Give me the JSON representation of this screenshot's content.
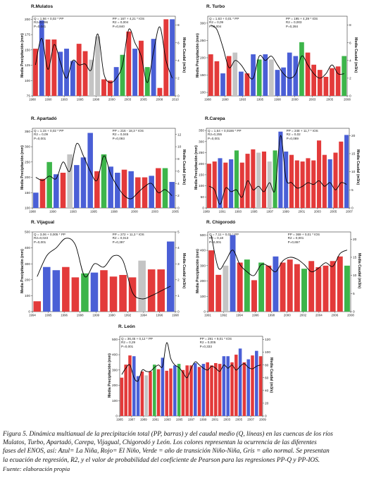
{
  "colors": {
    "nina": "#4a5fd6",
    "nino": "#e33a3a",
    "transicion": "#3db54a",
    "normal": "#c4c4c4",
    "line": "#000000"
  },
  "chart_data": [
    {
      "type": "bar",
      "title": "R.Mulatos",
      "eq": {
        "q": "Q = 1,56 + 0,02 * PP",
        "r2q": "R2=0,096",
        "pq": "P=0,041",
        "pp": "PP = 167 + 4,21 * IOS",
        "r2p": "R2 = 0,004",
        "ppv": "P=0,840"
      },
      "ylabel": "Media Precipitación (mm)",
      "y2label": "Media Caudal (m3/s)",
      "yticks": [
        "75",
        "100",
        "125",
        "150",
        "175",
        "200"
      ],
      "y2ticks": [
        "0",
        "2",
        "4",
        "6",
        "8"
      ],
      "xticks": [
        "1988",
        "1990",
        "1993",
        "1995",
        "1998",
        "2000",
        "2003",
        "2005",
        "2008",
        "2010"
      ],
      "ylim": [
        75,
        205
      ],
      "y2lim": [
        0,
        9
      ],
      "values": [
        152,
        198,
        167,
        167,
        147,
        152,
        132,
        160,
        148,
        134,
        172,
        102,
        100,
        122,
        142,
        180,
        152,
        165,
        122,
        168,
        88,
        200,
        200
      ],
      "phases": [
        "nino",
        "nina",
        "nino",
        "nino",
        "nina",
        "nina",
        "nina",
        "nino",
        "nino",
        "normal",
        "normal",
        "nino",
        "nino",
        "nina",
        "transicion",
        "nino",
        "nina",
        "nino",
        "transicion",
        "nina",
        "nino",
        "nino",
        "nina"
      ],
      "q": [
        3.5,
        6.5,
        3.0,
        5.8,
        3.8,
        2.0,
        4.0,
        3.5,
        3.6,
        3.0,
        7.0,
        2.5,
        1.5,
        2.0,
        3.5,
        7.5,
        6.0,
        4.5,
        1.5,
        5.0,
        7.8,
        4.0,
        2.0
      ]
    },
    {
      "type": "bar",
      "title": "R. Turbo",
      "eq": {
        "q": "Q = 1,63 + 0,01 * PP",
        "r2q": "R2 = 0,09",
        "pq": "P=0,004",
        "pp": "PP = 195 + 4,39 * IOS",
        "r2p": "R2 = 0,003",
        "ppv": "P=0,284"
      },
      "ylabel": "Media Precipitación (mm)",
      "y2label": "Media Caudal (m3/s)",
      "yticks": [
        "100",
        "150",
        "200",
        "250",
        "300"
      ],
      "y2ticks": [
        "0",
        "2",
        "4",
        "6",
        "8"
      ],
      "xticks": [
        "1988",
        "1990",
        "1993",
        "1995",
        "1998",
        "2000",
        "2003",
        "2005",
        "2008"
      ],
      "ylim": [
        90,
        320
      ],
      "y2lim": [
        0,
        9
      ],
      "values": [
        210,
        190,
        155,
        205,
        215,
        160,
        155,
        210,
        195,
        210,
        195,
        165,
        172,
        215,
        205,
        245,
        215,
        180,
        165,
        145,
        170,
        175,
        205
      ],
      "phases": [
        "nino",
        "nino",
        "nina",
        "nino",
        "normal",
        "nina",
        "nino",
        "nina",
        "transicion",
        "nina",
        "normal",
        "nina",
        "nina",
        "nina",
        "nina",
        "transicion",
        "nino",
        "nino",
        "nino",
        "nino",
        "nino",
        "nino",
        "transicion"
      ],
      "q": [
        8.0,
        7.5,
        5.5,
        3.2,
        4.0,
        3.5,
        2.5,
        2.0,
        4.5,
        4.0,
        4.5,
        3.5,
        2.5,
        2.0,
        2.5,
        4.5,
        3.5,
        2.5,
        2.0,
        2.5,
        3.5,
        2.5,
        2.5
      ]
    },
    {
      "type": "bar",
      "title": "R. Apartadó",
      "eq": {
        "q": "Q = 1,15 + 0,02 * PP",
        "r2q": "R2 = 0,09",
        "pq": "P=0,001",
        "pp": "PP = 216 - 18,3 * IOS",
        "r2p": "R2 = 0,045",
        "ppv": "P=0,093"
      },
      "ylabel": "Media Precipitación (mm)",
      "y2label": "Media Caudal (m3/s)",
      "yticks": [
        "100",
        "150",
        "200",
        "250",
        "300",
        "350"
      ],
      "y2ticks": [
        "0",
        "2",
        "4",
        "6",
        "8",
        "10",
        "12"
      ],
      "xticks": [
        "1988",
        "1990",
        "1993",
        "1995",
        "1998",
        "2000",
        "2003",
        "2005"
      ],
      "ylim": [
        100,
        360
      ],
      "y2lim": [
        0,
        13
      ],
      "values": [
        150,
        195,
        250,
        210,
        215,
        275,
        240,
        265,
        345,
        220,
        275,
        235,
        215,
        225,
        220,
        200,
        200,
        205,
        230,
        230,
        185
      ],
      "phases": [
        "nina",
        "nino",
        "transicion",
        "nina",
        "nino",
        "normal",
        "nina",
        "nina",
        "nina",
        "nino",
        "transicion",
        "nina",
        "nina",
        "nino",
        "nina",
        "nino",
        "nino",
        "nina",
        "nino",
        "transicion",
        "nina"
      ],
      "q": [
        5.0,
        4.5,
        5.2,
        4.8,
        7.5,
        6.0,
        10.5,
        8.5,
        6.0,
        4.5,
        8.5,
        5.5,
        3.5,
        2.0,
        1.5,
        2.5,
        3.5,
        4.0,
        2.5,
        3.0,
        2.0
      ]
    },
    {
      "type": "bar",
      "title": "R.Carepa",
      "eq": {
        "q": "Q = 1,64 + 0,0186 * PP",
        "r2q": "R2=0,255",
        "pq": "P=0,001",
        "pp": "PP = 248 + 11,7 * IOS",
        "r2p": "R2 = 0,02",
        "ppv": "P=0,089"
      },
      "ylabel": "Media Precipitación (mm)",
      "y2label": "Media Caudal (m3/s)",
      "yticks": [
        "0",
        "50",
        "100",
        "150",
        "200",
        "250",
        "300",
        "350"
      ],
      "y2ticks": [
        "0",
        "5",
        "10",
        "15",
        "20"
      ],
      "xticks": [
        "1989",
        "1991",
        "1993",
        "1995",
        "1997",
        "1999",
        "2001",
        "2003",
        "2005",
        "2007"
      ],
      "ylim": [
        0,
        360
      ],
      "y2lim": [
        0,
        22
      ],
      "values": [
        200,
        210,
        225,
        205,
        220,
        260,
        205,
        245,
        265,
        250,
        255,
        210,
        260,
        345,
        255,
        240,
        215,
        210,
        225,
        215,
        305,
        240,
        220,
        250,
        300,
        330
      ],
      "phases": [
        "nino",
        "nino",
        "nina",
        "nino",
        "nina",
        "transicion",
        "nino",
        "nino",
        "nino",
        "normal",
        "nino",
        "normal",
        "transicion",
        "nina",
        "nina",
        "nino",
        "nino",
        "nino",
        "nino",
        "nino",
        "nino",
        "nino",
        "nina",
        "nino",
        "nino",
        "nina"
      ],
      "q": [
        6.0,
        5.0,
        1.0,
        5.5,
        4.5,
        5.0,
        3.0,
        7.5,
        5.0,
        6.0,
        4.5,
        7.0,
        5.0,
        20.0,
        8.0,
        7.0,
        5.5,
        6.0,
        7.0,
        6.5,
        7.5,
        6.0,
        7.0,
        5.0,
        7.0,
        6.5
      ]
    },
    {
      "type": "bar",
      "title": "R. Vijagual",
      "eq": {
        "q": "Q = 3,06 + 0,005 * PP",
        "r2q": "R2=0,023",
        "pq": "P=0,001",
        "pp": "PP = 272 + 11,3 * IOS",
        "r2p": "R2 = 0,013",
        "ppv": "P=0,397"
      },
      "ylabel": "Media Precipitación (mm)",
      "y2label": "Media Caudal (m3/s)",
      "yticks": [
        "0",
        "100",
        "200",
        "300",
        "400",
        "500"
      ],
      "y2ticks": [
        "0",
        "1",
        "2",
        "3",
        "4",
        "5"
      ],
      "xticks": [
        "1994",
        "1995",
        "1996",
        "1998",
        "1999",
        "1990",
        "1992",
        "1994",
        "1996",
        "1998"
      ],
      "ylim": [
        0,
        500
      ],
      "y2lim": [
        0,
        5
      ],
      "values": [
        65,
        280,
        260,
        280,
        215,
        240,
        245,
        260,
        220,
        230,
        215,
        320,
        265,
        265,
        440
      ],
      "phases": [
        "nino",
        "nina",
        "nina",
        "nino",
        "nino",
        "transicion",
        "nina",
        "nino",
        "nino",
        "nino",
        "nino",
        "normal",
        "nino",
        "nino",
        "nina"
      ],
      "q": [
        2.2,
        3.5,
        4.0,
        4.6,
        4.2,
        2.2,
        3.0,
        2.8,
        3.5,
        3.2,
        1.2,
        0.8,
        1.0,
        1.3,
        1.6
      ]
    },
    {
      "type": "bar",
      "title": "R. Chigorodó",
      "eq": {
        "q": "Q = 7,11 + 0,02 * PP",
        "r2q": "R2 = 0,18",
        "pq": "P=0,001",
        "pp": "PP = 369 + 0,01 * IOS",
        "r2p": "R2 = 0,001",
        "ppv": "P=0,657"
      },
      "ylabel": "Media Precipitación (mm)",
      "y2label": "Media Caudal (m3/s)",
      "yticks": [
        "0",
        "100",
        "200",
        "300",
        "400",
        "500"
      ],
      "y2ticks": [
        "0",
        "5",
        "10",
        "15",
        "20"
      ],
      "xticks": [
        "1991",
        "1992",
        "1994",
        "1996",
        "1998",
        "2000",
        "2002",
        "2004",
        "2006",
        "2008"
      ],
      "ylim": [
        0,
        520
      ],
      "y2lim": [
        0,
        22
      ],
      "values": [
        400,
        240,
        300,
        500,
        320,
        340,
        205,
        320,
        300,
        360,
        320,
        340,
        310,
        280,
        330,
        290,
        300,
        330,
        360,
        300
      ],
      "phases": [
        "nino",
        "nino",
        "normal",
        "nina",
        "nino",
        "transicion",
        "nino",
        "transicion",
        "nino",
        "nina",
        "nino",
        "nino",
        "nino",
        "transicion",
        "nino",
        "nino",
        "nino",
        "nino",
        "nino",
        "transicion"
      ],
      "q": [
        21.0,
        12.0,
        14.0,
        17.0,
        13.0,
        11.0,
        10.0,
        13.0,
        12.5,
        11.0,
        14.0,
        15.0,
        14.5,
        13.0,
        11.0,
        12.0,
        13.5,
        12.5,
        16.0,
        17.0
      ]
    },
    {
      "type": "bar",
      "title": "R. León",
      "eq": {
        "q": "Q = 36,45 + 0,12 * PP",
        "r2q": "R2 = 0,29",
        "pq": "P=0,001",
        "pp": "PP = 291 + 9,01 * IOS",
        "r2p": "R2 = 0,005",
        "ppv": "P=0,333"
      },
      "ylabel": "Media Precipitación (mm)",
      "y2label": "Media Caudal (m3/s)",
      "yticks": [
        "0",
        "100",
        "200",
        "300",
        "400",
        "500"
      ],
      "y2ticks": [
        "0",
        "20",
        "40",
        "60",
        "80",
        "100",
        "120"
      ],
      "xticks": [
        "1985",
        "1987",
        "1989",
        "1991",
        "1993",
        "1995",
        "1997",
        "1999",
        "2001",
        "2003",
        "2005",
        "2007",
        "2009"
      ],
      "ylim": [
        0,
        520
      ],
      "y2lim": [
        0,
        125
      ],
      "values": [
        250,
        335,
        395,
        390,
        260,
        290,
        265,
        290,
        335,
        305,
        380,
        295,
        310,
        330,
        340,
        300,
        330,
        330,
        345,
        320,
        340,
        350,
        330,
        345,
        340,
        390,
        390,
        350,
        400,
        440,
        350,
        370,
        395,
        425,
        390
      ],
      "phases": [
        "nino",
        "nino",
        "nino",
        "nina",
        "nina",
        "nino",
        "normal",
        "nino",
        "transicion",
        "nino",
        "nina",
        "nino",
        "nino",
        "nina",
        "transicion",
        "nino",
        "nino",
        "nino",
        "nina",
        "nino",
        "nina",
        "nino",
        "nino",
        "nino",
        "nino",
        "nina",
        "nina",
        "nino",
        "nino",
        "nina",
        "nino",
        "nina",
        "nino",
        "nina",
        "nino"
      ],
      "q": [
        65,
        75,
        80,
        60,
        55,
        72,
        70,
        70,
        76,
        80,
        78,
        115,
        90,
        80,
        76,
        68,
        60,
        75,
        85,
        80,
        75,
        72,
        78,
        75,
        70,
        80,
        75,
        80,
        72,
        78,
        82,
        76,
        74,
        78,
        80
      ]
    }
  ],
  "caption": {
    "line1": "Figura 5. Dinámica multianual de la precipitación total (PP, barras) y del caudal medio (Q, líneas) en las cuencas de los ríos",
    "line2": "Mulatos, Turbo, Apartadó, Carepa, Vijagual, Chigorodó y León. Los colores representan la ocurrencia de las diferentes",
    "line3": "fases del ENOS, así: Azul= La Niña, Rojo= El Niño, Verde = año de transición Niño-Niña, Gris = año normal. Se presentan",
    "line4": "la ecuación de regresión, R2, y el valor de probabilidad del coeficiente de Pearson para las regresiones PP-Q y PP-IOS.",
    "source": "Fuente: elaboración propia"
  }
}
